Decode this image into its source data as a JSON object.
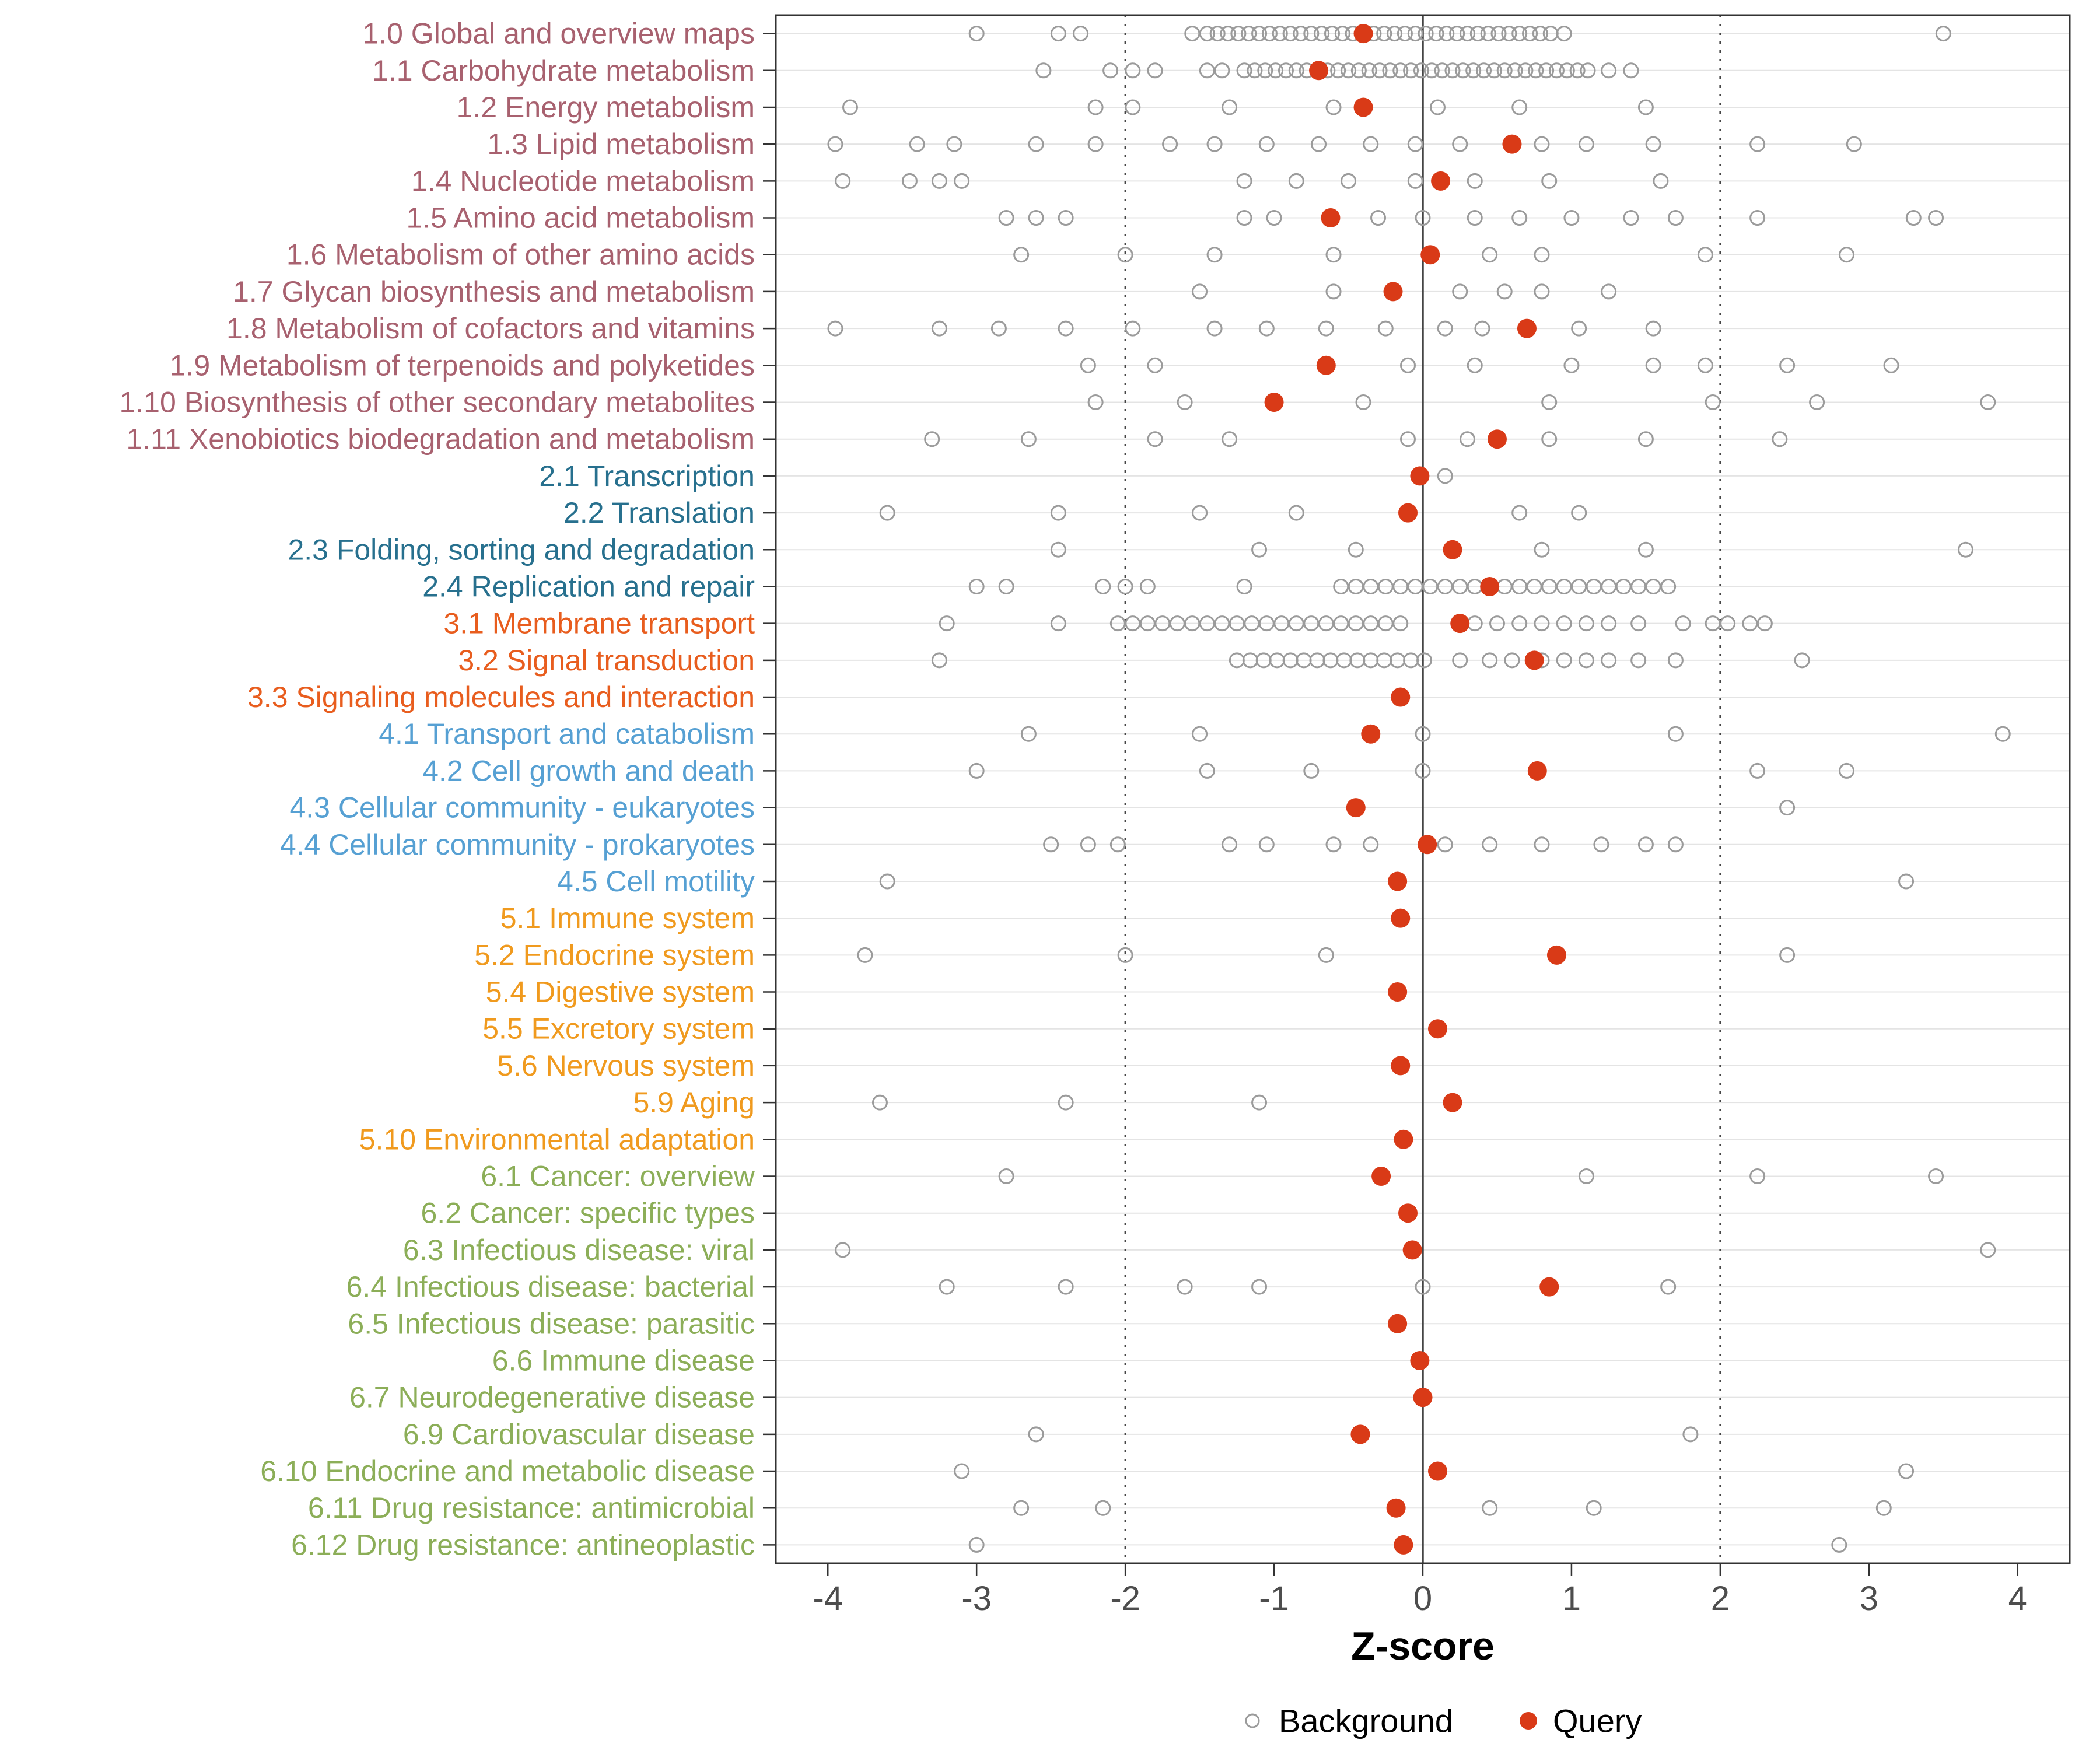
{
  "legend": {
    "background": "Background",
    "query": "Query"
  },
  "colors": {
    "query": "#D93A17",
    "background_stroke": "#9B9B9B",
    "zero_line": "#454545",
    "ref_line": "#454545",
    "grid": "#E4E4E4",
    "panel_border": "#333333",
    "tick_text": "#4D4D4D",
    "axis_title_text": "#000000",
    "groups": {
      "1": "#A8616F",
      "2": "#27708E",
      "3": "#E85D1E",
      "4": "#56A0D3",
      "5": "#F09A1E",
      "6": "#8CAE58"
    }
  },
  "chart_data": {
    "type": "scatter",
    "title": "",
    "xlabel": "Z-score",
    "ylabel": "",
    "xlim": [
      -4.35,
      4.35
    ],
    "xticks": [
      -4,
      -3,
      -2,
      -1,
      0,
      1,
      2,
      3,
      4
    ],
    "reference_lines": {
      "solid": [
        0
      ],
      "dotted": [
        -2,
        2
      ]
    },
    "legend_position": "bottom",
    "series_names": [
      "Background",
      "Query"
    ],
    "rows": [
      {
        "label": "1.0 Global and overview maps",
        "group": "1",
        "query": -0.4,
        "background": [
          -3,
          -2.45,
          -2.3,
          -1.55,
          -1.45,
          -1.38,
          -1.31,
          -1.24,
          -1.17,
          -1.1,
          -1.03,
          -0.96,
          -0.89,
          -0.82,
          -0.75,
          -0.68,
          -0.61,
          -0.54,
          -0.47,
          -0.4,
          -0.33,
          -0.26,
          -0.19,
          -0.12,
          -0.05,
          0.02,
          0.09,
          0.16,
          0.23,
          0.3,
          0.37,
          0.44,
          0.51,
          0.58,
          0.65,
          0.72,
          0.79,
          0.86,
          0.95,
          3.5
        ]
      },
      {
        "label": "1.1 Carbohydrate metabolism",
        "group": "1",
        "query": -0.7,
        "background": [
          -2.55,
          -2.1,
          -1.95,
          -1.8,
          -1.45,
          -1.35,
          -1.2,
          -1.13,
          -1.06,
          -0.99,
          -0.92,
          -0.85,
          -0.78,
          -0.71,
          -0.64,
          -0.57,
          -0.5,
          -0.43,
          -0.36,
          -0.29,
          -0.22,
          -0.15,
          -0.08,
          -0.01,
          0.06,
          0.13,
          0.2,
          0.27,
          0.34,
          0.41,
          0.48,
          0.55,
          0.62,
          0.69,
          0.76,
          0.83,
          0.9,
          0.97,
          1.04,
          1.11,
          1.25,
          1.4
        ]
      },
      {
        "label": "1.2 Energy metabolism",
        "group": "1",
        "query": -0.4,
        "background": [
          -3.85,
          -2.2,
          -1.95,
          -1.3,
          -0.6,
          0.1,
          0.65,
          1.5
        ]
      },
      {
        "label": "1.3 Lipid metabolism",
        "group": "1",
        "query": 0.6,
        "background": [
          -3.95,
          -3.4,
          -3.15,
          -2.6,
          -2.2,
          -1.7,
          -1.4,
          -1.05,
          -0.7,
          -0.35,
          -0.05,
          0.25,
          0.8,
          1.1,
          1.55,
          2.25,
          2.9
        ]
      },
      {
        "label": "1.4 Nucleotide metabolism",
        "group": "1",
        "query": 0.12,
        "background": [
          -3.9,
          -3.45,
          -3.25,
          -3.1,
          -1.2,
          -0.85,
          -0.5,
          -0.05,
          0.35,
          0.85,
          1.6
        ]
      },
      {
        "label": "1.5 Amino acid metabolism",
        "group": "1",
        "query": -0.62,
        "background": [
          -2.8,
          -2.6,
          -2.4,
          -1.2,
          -1.0,
          -0.3,
          0.0,
          0.35,
          0.65,
          1.0,
          1.4,
          1.7,
          2.25,
          3.3,
          3.45
        ]
      },
      {
        "label": "1.6 Metabolism of other amino acids",
        "group": "1",
        "query": 0.05,
        "background": [
          -2.7,
          -2.0,
          -1.4,
          -0.6,
          0.45,
          0.8,
          1.9,
          2.85
        ]
      },
      {
        "label": "1.7 Glycan biosynthesis and metabolism",
        "group": "1",
        "query": -0.2,
        "background": [
          -1.5,
          -0.6,
          0.25,
          0.55,
          0.8,
          1.25
        ]
      },
      {
        "label": "1.8 Metabolism of cofactors and vitamins",
        "group": "1",
        "query": 0.7,
        "background": [
          -3.95,
          -3.25,
          -2.85,
          -2.4,
          -1.95,
          -1.4,
          -1.05,
          -0.65,
          -0.25,
          0.15,
          0.4,
          1.05,
          1.55
        ]
      },
      {
        "label": "1.9 Metabolism of terpenoids and polyketides",
        "group": "1",
        "query": -0.65,
        "background": [
          -2.25,
          -1.8,
          -0.1,
          0.35,
          1.0,
          1.55,
          1.9,
          2.45,
          3.15
        ]
      },
      {
        "label": "1.10 Biosynthesis of other secondary metabolites",
        "group": "1",
        "query": -1.0,
        "background": [
          -2.2,
          -1.6,
          -0.4,
          0.85,
          1.95,
          2.65,
          3.8
        ]
      },
      {
        "label": "1.11 Xenobiotics biodegradation and metabolism",
        "group": "1",
        "query": 0.5,
        "background": [
          -3.3,
          -2.65,
          -1.8,
          -1.3,
          -0.1,
          0.3,
          0.85,
          1.5,
          2.4
        ]
      },
      {
        "label": "2.1 Transcription",
        "group": "2",
        "query": -0.02,
        "background": [
          0.15
        ]
      },
      {
        "label": "2.2 Translation",
        "group": "2",
        "query": -0.1,
        "background": [
          -3.6,
          -2.45,
          -1.5,
          -0.85,
          0.65,
          1.05
        ]
      },
      {
        "label": "2.3 Folding, sorting and degradation",
        "group": "2",
        "query": 0.2,
        "background": [
          -2.45,
          -1.1,
          -0.45,
          0.8,
          1.5,
          3.65
        ]
      },
      {
        "label": "2.4 Replication and repair",
        "group": "2",
        "query": 0.45,
        "background": [
          -3.0,
          -2.8,
          -2.15,
          -2.0,
          -1.85,
          -1.2,
          -0.55,
          -0.45,
          -0.35,
          -0.25,
          -0.15,
          -0.05,
          0.05,
          0.15,
          0.25,
          0.35,
          0.55,
          0.65,
          0.75,
          0.85,
          0.95,
          1.05,
          1.15,
          1.25,
          1.35,
          1.45,
          1.55,
          1.65
        ]
      },
      {
        "label": "3.1 Membrane transport",
        "group": "3",
        "query": 0.25,
        "background": [
          -3.2,
          -2.45,
          -2.05,
          -1.95,
          -1.85,
          -1.75,
          -1.65,
          -1.55,
          -1.45,
          -1.35,
          -1.25,
          -1.15,
          -1.05,
          -0.95,
          -0.85,
          -0.75,
          -0.65,
          -0.55,
          -0.45,
          -0.35,
          -0.25,
          -0.15,
          0.35,
          0.5,
          0.65,
          0.8,
          0.95,
          1.1,
          1.25,
          1.45,
          1.75,
          1.95,
          2.05,
          2.2,
          2.3
        ]
      },
      {
        "label": "3.2 Signal transduction",
        "group": "3",
        "query": 0.75,
        "background": [
          -3.25,
          -1.25,
          -1.16,
          -1.07,
          -0.98,
          -0.89,
          -0.8,
          -0.71,
          -0.62,
          -0.53,
          -0.44,
          -0.35,
          -0.26,
          -0.17,
          -0.08,
          0.01,
          0.25,
          0.45,
          0.6,
          0.8,
          0.95,
          1.1,
          1.25,
          1.45,
          1.7,
          2.55
        ]
      },
      {
        "label": "3.3 Signaling molecules and interaction",
        "group": "3",
        "query": -0.15,
        "background": []
      },
      {
        "label": "4.1 Transport and catabolism",
        "group": "4",
        "query": -0.35,
        "background": [
          -2.65,
          -1.5,
          0.0,
          1.7,
          3.9
        ]
      },
      {
        "label": "4.2 Cell growth and death",
        "group": "4",
        "query": 0.77,
        "background": [
          -3.0,
          -1.45,
          -0.75,
          0.0,
          2.25,
          2.85
        ]
      },
      {
        "label": "4.3 Cellular community - eukaryotes",
        "group": "4",
        "query": -0.45,
        "background": [
          2.45
        ]
      },
      {
        "label": "4.4 Cellular community - prokaryotes",
        "group": "4",
        "query": 0.03,
        "background": [
          -2.5,
          -2.25,
          -2.05,
          -1.3,
          -1.05,
          -0.6,
          -0.35,
          0.15,
          0.45,
          0.8,
          1.2,
          1.5,
          1.7
        ]
      },
      {
        "label": "4.5 Cell motility",
        "group": "4",
        "query": -0.17,
        "background": [
          -3.6,
          3.25
        ]
      },
      {
        "label": "5.1 Immune system",
        "group": "5",
        "query": -0.15,
        "background": []
      },
      {
        "label": "5.2 Endocrine system",
        "group": "5",
        "query": 0.9,
        "background": [
          -3.75,
          -2.0,
          -0.65,
          2.45
        ]
      },
      {
        "label": "5.4 Digestive system",
        "group": "5",
        "query": -0.17,
        "background": []
      },
      {
        "label": "5.5 Excretory system",
        "group": "5",
        "query": 0.1,
        "background": []
      },
      {
        "label": "5.6 Nervous system",
        "group": "5",
        "query": -0.15,
        "background": []
      },
      {
        "label": "5.9 Aging",
        "group": "5",
        "query": 0.2,
        "background": [
          -3.65,
          -2.4,
          -1.1
        ]
      },
      {
        "label": "5.10 Environmental adaptation",
        "group": "5",
        "query": -0.13,
        "background": []
      },
      {
        "label": "6.1 Cancer: overview",
        "group": "6",
        "query": -0.28,
        "background": [
          -2.8,
          1.1,
          2.25,
          3.45
        ]
      },
      {
        "label": "6.2 Cancer: specific types",
        "group": "6",
        "query": -0.1,
        "background": []
      },
      {
        "label": "6.3 Infectious disease: viral",
        "group": "6",
        "query": -0.07,
        "background": [
          -3.9,
          3.8
        ]
      },
      {
        "label": "6.4 Infectious disease: bacterial",
        "group": "6",
        "query": 0.85,
        "background": [
          -3.2,
          -2.4,
          -1.6,
          -1.1,
          0.0,
          1.65
        ]
      },
      {
        "label": "6.5 Infectious disease: parasitic",
        "group": "6",
        "query": -0.17,
        "background": []
      },
      {
        "label": "6.6 Immune disease",
        "group": "6",
        "query": -0.02,
        "background": []
      },
      {
        "label": "6.7 Neurodegenerative disease",
        "group": "6",
        "query": 0.0,
        "background": []
      },
      {
        "label": "6.9 Cardiovascular disease",
        "group": "6",
        "query": -0.42,
        "background": [
          -2.6,
          1.8
        ]
      },
      {
        "label": "6.10 Endocrine and metabolic disease",
        "group": "6",
        "query": 0.1,
        "background": [
          -3.1,
          3.25
        ]
      },
      {
        "label": "6.11 Drug resistance: antimicrobial",
        "group": "6",
        "query": -0.18,
        "background": [
          -2.7,
          -2.15,
          0.45,
          1.15,
          3.1
        ]
      },
      {
        "label": "6.12 Drug resistance: antineoplastic",
        "group": "6",
        "query": -0.13,
        "background": [
          -3.0,
          2.8
        ]
      }
    ]
  }
}
